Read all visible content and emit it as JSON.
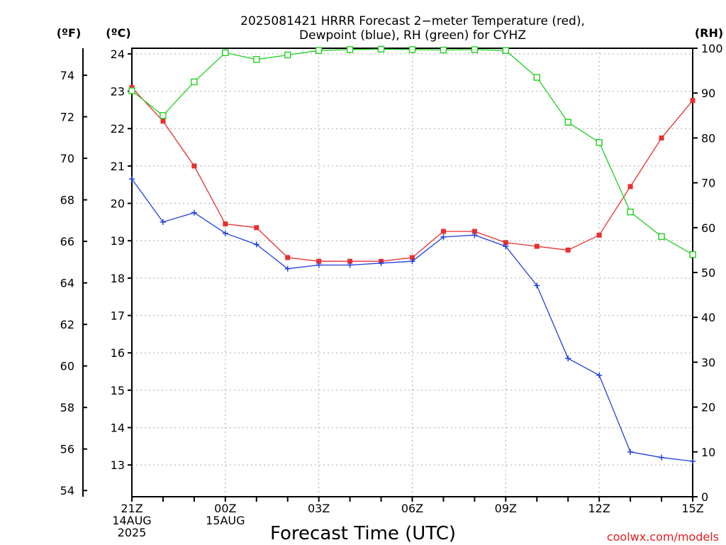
{
  "title_line1": "2025081421 HRRR Forecast 2−meter Temperature (red),",
  "title_line2": "Dewpoint (blue), RH (green) for CYHZ",
  "unit_f": "(ºF)",
  "unit_c": "(ºC)",
  "unit_rh": "(RH)",
  "xlabel": "Forecast Time (UTC)",
  "credit": "coolwx.com/models",
  "x_ticks": [
    {
      "h": 0,
      "lines": [
        "21Z",
        "14AUG",
        "2025"
      ]
    },
    {
      "h": 3,
      "lines": [
        "00Z",
        "15AUG"
      ]
    },
    {
      "h": 6,
      "lines": [
        "03Z"
      ]
    },
    {
      "h": 9,
      "lines": [
        "06Z"
      ]
    },
    {
      "h": 12,
      "lines": [
        "09Z"
      ]
    },
    {
      "h": 15,
      "lines": [
        "12Z"
      ]
    },
    {
      "h": 18,
      "lines": [
        "15Z"
      ]
    }
  ],
  "f_ticks": [
    "54",
    "56",
    "58",
    "60",
    "62",
    "64",
    "66",
    "68",
    "70",
    "72",
    "74"
  ],
  "c_ticks": [
    "13",
    "14",
    "15",
    "16",
    "17",
    "18",
    "19",
    "20",
    "21",
    "22",
    "23",
    "24"
  ],
  "rh_ticks": [
    "0",
    "10",
    "20",
    "30",
    "40",
    "50",
    "60",
    "70",
    "80",
    "90",
    "100"
  ],
  "colors": {
    "temperature": "#e83030",
    "dewpoint": "#2040e0",
    "rh": "#20d020"
  },
  "chart_data": {
    "type": "line",
    "x": [
      "21Z",
      "22Z",
      "23Z",
      "00Z",
      "01Z",
      "02Z",
      "03Z",
      "04Z",
      "05Z",
      "06Z",
      "07Z",
      "08Z",
      "09Z",
      "10Z",
      "11Z",
      "12Z",
      "13Z",
      "14Z",
      "15Z"
    ],
    "ylim_c": [
      12.15,
      24.15
    ],
    "ylim_f": [
      53.7,
      75.3
    ],
    "ylim_rh": [
      0,
      100
    ],
    "grid": true,
    "series": [
      {
        "name": "Temperature (red)",
        "axis": "c",
        "values": [
          23.1,
          22.2,
          21.0,
          19.45,
          19.35,
          18.55,
          18.45,
          18.45,
          18.45,
          18.55,
          19.25,
          19.25,
          18.95,
          18.85,
          18.75,
          19.15,
          20.45,
          21.75,
          22.75
        ]
      },
      {
        "name": "Dewpoint (blue)",
        "axis": "c",
        "values": [
          20.65,
          19.5,
          19.75,
          19.2,
          18.9,
          18.25,
          18.35,
          18.35,
          18.4,
          18.45,
          19.1,
          19.15,
          18.85,
          17.8,
          15.85,
          15.4,
          13.35,
          13.2,
          13.1
        ]
      },
      {
        "name": "RH (green)",
        "axis": "rh",
        "values": [
          90.5,
          85,
          92.5,
          99,
          97.5,
          98.5,
          99.5,
          99.7,
          99.8,
          99.7,
          99.6,
          99.7,
          99.5,
          93.5,
          83.5,
          79,
          63.5,
          58,
          54
        ]
      }
    ]
  }
}
